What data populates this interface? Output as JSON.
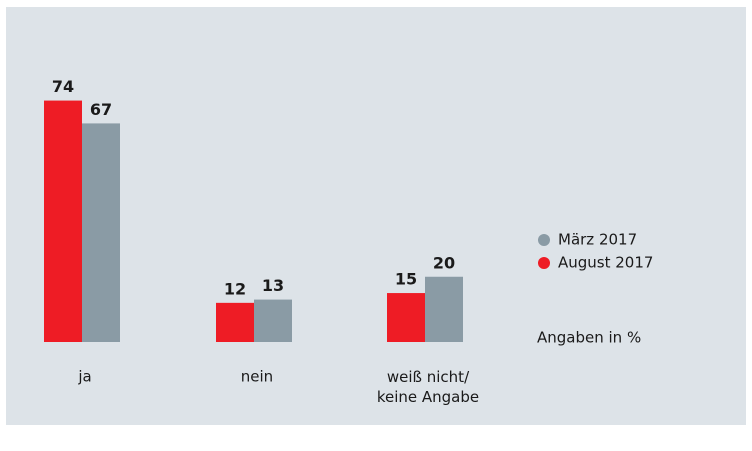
{
  "chart_data": {
    "type": "bar",
    "categories": [
      "ja",
      "nein",
      "weiß nicht/\nkeine Angabe"
    ],
    "series": [
      {
        "name": "August 2017",
        "color": "#ee1c25",
        "values": [
          74,
          12,
          15
        ]
      },
      {
        "name": "März 2017",
        "color": "#8a9ba5",
        "values": [
          67,
          13,
          20
        ]
      }
    ],
    "ylim": [
      0,
      80
    ],
    "legend": "right",
    "annotation": "Angaben in %"
  }
}
